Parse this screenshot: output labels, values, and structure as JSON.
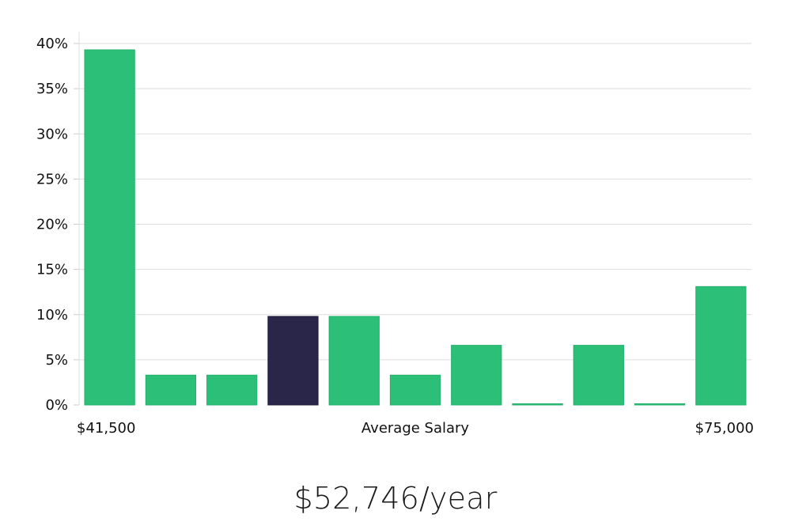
{
  "chart_data": {
    "type": "bar",
    "categories": [
      "1",
      "2",
      "3",
      "4",
      "5",
      "6",
      "7",
      "8",
      "9",
      "10",
      "11"
    ],
    "values": [
      39.3,
      3.3,
      3.3,
      9.8,
      9.8,
      3.3,
      6.6,
      0.0,
      6.6,
      0.0,
      13.1
    ],
    "highlight_index": 3,
    "ylim": [
      0,
      40
    ],
    "yticks": [
      0,
      5,
      10,
      15,
      20,
      25,
      30,
      35,
      40
    ],
    "ytick_labels": [
      "0%",
      "5%",
      "10%",
      "15%",
      "20%",
      "25%",
      "30%",
      "35%",
      "40%"
    ],
    "x_min_label": "$41,500",
    "x_max_label": "$75,000",
    "xlabel": "Average Salary",
    "grid": true,
    "colors": {
      "bar": "#2bbf77",
      "highlight": "#29264a",
      "grid": "#dddddd"
    }
  },
  "summary": {
    "salary": "$52,746/year"
  }
}
